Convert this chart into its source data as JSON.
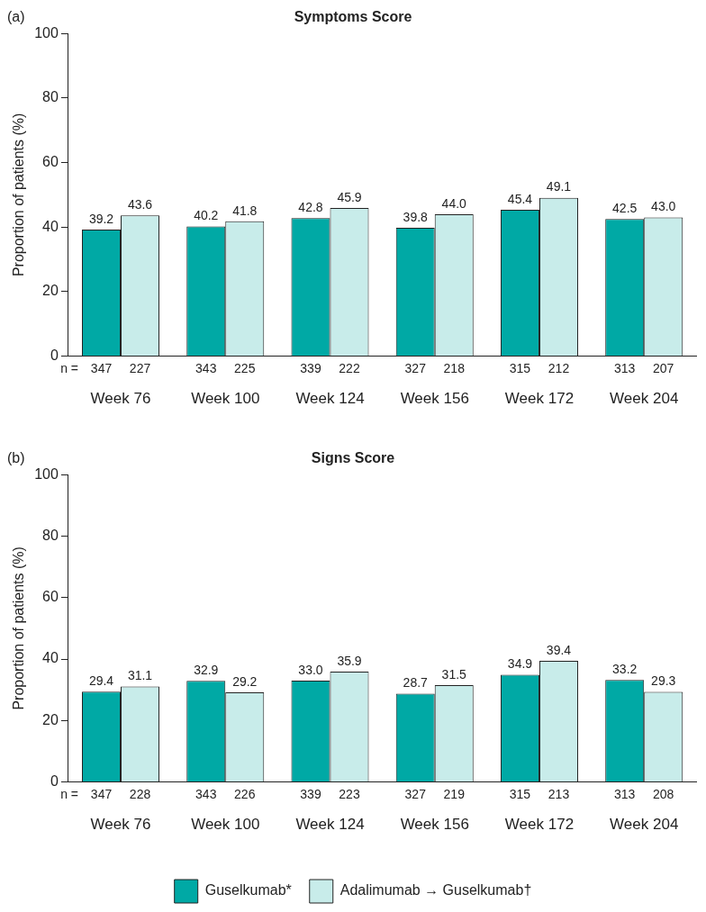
{
  "chart_data": [
    {
      "type": "bar",
      "title": "Symptoms Score",
      "ylabel": "Proportion of patients (%)",
      "categories": [
        "Week 76",
        "Week 100",
        "Week 124",
        "Week 156",
        "Week 172",
        "Week 204"
      ],
      "series": [
        {
          "color": "#00a9a5",
          "values": [
            39.2,
            40.2,
            42.8,
            39.8,
            45.4,
            42.5
          ],
          "value_labels": [
            "39.2",
            "40.2",
            "42.8",
            "39.8",
            "45.4",
            "42.5"
          ]
        },
        {
          "color": "#c8ecea",
          "values": [
            43.6,
            41.8,
            45.9,
            44.0,
            49.1,
            43.0
          ],
          "value_labels": [
            "43.6",
            "41.8",
            "45.9",
            "44.0",
            "49.1",
            "43.0"
          ]
        }
      ],
      "ylim": [
        0,
        100
      ],
      "yticks": [
        0,
        20,
        40,
        60,
        80,
        100
      ],
      "grid": false,
      "legend": false,
      "annotations": [
        "(a)",
        "n =",
        "347",
        "227",
        "343",
        "225",
        "339",
        "222",
        "327",
        "218",
        "315",
        "212",
        "313",
        "207"
      ]
    },
    {
      "type": "bar",
      "title": "Signs Score",
      "ylabel": "Proportion of patients (%)",
      "categories": [
        "Week 76",
        "Week 100",
        "Week 124",
        "Week 156",
        "Week 172",
        "Week 204"
      ],
      "series": [
        {
          "name": "Guselkumab*",
          "color": "#00a9a5",
          "values": [
            29.4,
            32.9,
            33.0,
            28.7,
            34.9,
            33.2
          ],
          "value_labels": [
            "29.4",
            "32.9",
            "33.0",
            "28.7",
            "34.9",
            "33.2"
          ]
        },
        {
          "name": "Adalimumab → Guselkumab†",
          "color": "#c8ecea",
          "values": [
            31.1,
            29.2,
            35.9,
            31.5,
            39.4,
            29.3
          ],
          "value_labels": [
            "31.1",
            "29.2",
            "35.9",
            "31.5",
            "39.4",
            "29.3"
          ]
        }
      ],
      "ylim": [
        0,
        100
      ],
      "yticks": [
        0,
        20,
        40,
        60,
        80,
        100
      ],
      "grid": false,
      "legend": "bottom",
      "annotations": [
        "(b)",
        "n =",
        "347",
        "228",
        "343",
        "226",
        "339",
        "223",
        "327",
        "219",
        "315",
        "213",
        "313",
        "208"
      ]
    }
  ]
}
